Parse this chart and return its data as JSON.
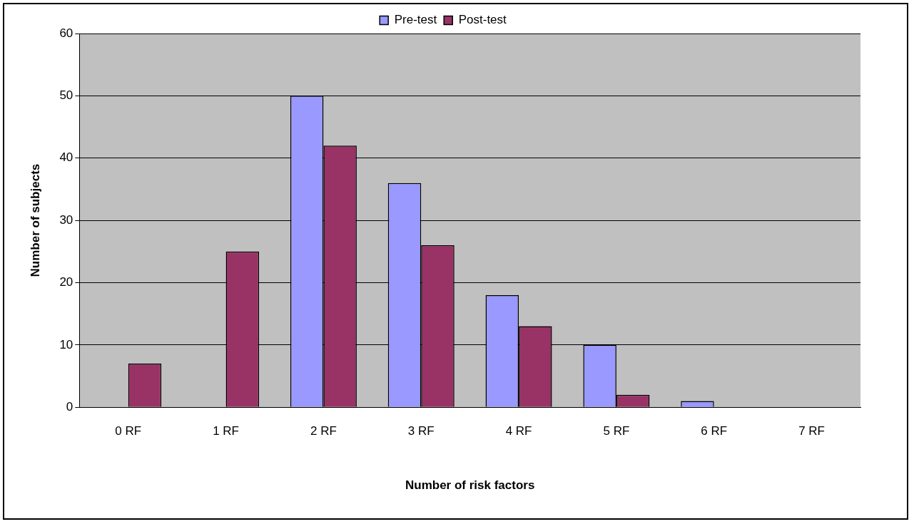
{
  "chart_data": {
    "type": "bar",
    "xlabel": "Number of risk factors",
    "ylabel": "Number of subjects",
    "categories": [
      "0 RF",
      "1 RF",
      "2 RF",
      "3 RF",
      "4 RF",
      "5 RF",
      "6 RF",
      "7 RF"
    ],
    "series": [
      {
        "name": "Pre-test",
        "color": "#9999ff",
        "values": [
          0,
          0,
          50,
          36,
          18,
          10,
          1,
          0
        ]
      },
      {
        "name": "Post-test",
        "color": "#993366",
        "values": [
          7,
          25,
          42,
          26,
          13,
          2,
          0,
          0
        ]
      }
    ],
    "ylim": [
      0,
      60
    ],
    "yticks": [
      0,
      10,
      20,
      30,
      40,
      50,
      60
    ],
    "grid": "y",
    "legend": "top"
  }
}
